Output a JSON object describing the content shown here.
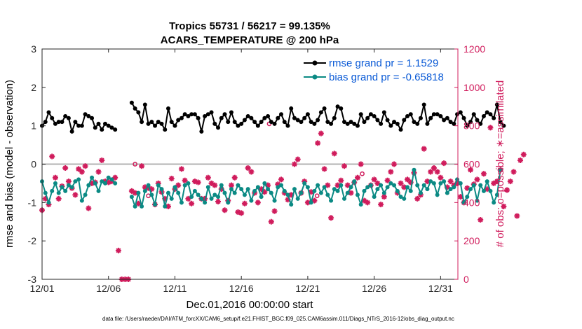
{
  "chart_data": {
    "type": "line",
    "title_line1": "Tropics 55731 / 56217 = 99.135%",
    "title_line2": "ACARS_TEMPERATURE @ 200 hPa",
    "xlabel": "Dec.01,2016 00:00:00 start",
    "ylabel_left": "rmse and bias (model - observation)",
    "ylabel_right": "# of obs: o=possible; ∗=assimilated",
    "footnote": "data file: /Users/raeder/DAI/ATM_forcXX/CAM6_setup/f.e21.FHIST_BGC.f09_025.CAM6assim.011/Diags_NTrS_2016-12/obs_diag_output.nc",
    "xlim": [
      1,
      32.3
    ],
    "ylim_left": [
      -3,
      3
    ],
    "ylim_right": [
      0,
      1200
    ],
    "x_ticks": [
      1,
      6,
      11,
      16,
      21,
      26,
      31
    ],
    "x_tick_labels": [
      "12/01",
      "12/06",
      "12/11",
      "12/16",
      "12/21",
      "12/26",
      "12/31"
    ],
    "y_ticks_left": [
      -3,
      -2,
      -1,
      0,
      1,
      2,
      3
    ],
    "y_ticks_right": [
      0,
      200,
      400,
      600,
      800,
      1000,
      1200
    ],
    "legend": {
      "position": "top-right",
      "entries": [
        "rmse grand pr = 1.1529",
        "bias grand pr = -0.65818"
      ]
    },
    "colors": {
      "rmse": "#000000",
      "bias": "#0b8a84",
      "obs": "#d01c5c",
      "zero_line": "#b3b3b3",
      "legend_text": "#0a5ad6"
    },
    "series": [
      {
        "name": "rmse",
        "x_start": 1.0,
        "x_step": 0.25,
        "values": [
          1.0,
          1.1,
          1.35,
          1.2,
          1.05,
          1.1,
          1.1,
          1.25,
          1.2,
          0.85,
          1.1,
          1.0,
          1.0,
          1.3,
          1.25,
          1.2,
          0.95,
          1.05,
          0.9,
          1.05,
          1.0,
          0.95,
          0.9,
          null,
          null,
          null,
          null,
          1.6,
          1.45,
          1.35,
          1.1,
          1.55,
          1.05,
          1.1,
          1.0,
          1.1,
          1.05,
          0.9,
          1.45,
          1.1,
          1.0,
          1.15,
          1.2,
          1.3,
          1.25,
          1.3,
          1.3,
          1.2,
          0.85,
          1.25,
          1.3,
          1.35,
          1.05,
          0.95,
          1.2,
          1.3,
          1.1,
          1.35,
          1.1,
          1.0,
          1.05,
          1.15,
          1.25,
          1.2,
          1.1,
          1.0,
          1.1,
          1.2,
          1.25,
          1.1,
          1.05,
          1.2,
          1.3,
          1.1,
          1.0,
          1.45,
          1.2,
          1.15,
          1.1,
          1.2,
          1.3,
          1.1,
          1.05,
          1.15,
          1.35,
          1.45,
          1.1,
          1.05,
          1.2,
          1.5,
          1.45,
          1.1,
          1.05,
          1.1,
          1.05,
          1.0,
          1.3,
          1.1,
          1.2,
          1.3,
          1.25,
          1.15,
          1.05,
          1.35,
          1.15,
          1.0,
          1.1,
          1.05,
          0.9,
          1.15,
          1.25,
          1.3,
          1.1,
          1.05,
          1.2,
          1.55,
          1.05,
          1.2,
          1.3,
          1.3,
          1.25,
          1.15,
          1.2,
          1.1,
          1.05,
          1.3,
          1.35,
          1.2,
          1.0,
          1.1,
          1.3,
          1.15,
          1.05,
          1.25,
          1.35,
          1.3,
          1.2,
          1.55,
          1.1,
          1.0
        ]
      },
      {
        "name": "bias",
        "x_start": 1.0,
        "x_step": 0.25,
        "values": [
          -0.45,
          -0.75,
          -1.0,
          -0.7,
          -0.5,
          -0.75,
          -0.6,
          -0.7,
          -0.55,
          -0.6,
          -0.45,
          -0.4,
          -0.95,
          -0.8,
          -0.55,
          -0.35,
          -0.5,
          -0.7,
          -0.45,
          -0.5,
          -0.35,
          -0.4,
          -0.5,
          null,
          null,
          null,
          null,
          -0.85,
          -1.1,
          -0.75,
          -1.1,
          -0.7,
          -0.55,
          -0.8,
          -1.05,
          -0.55,
          -0.65,
          -1.1,
          -0.75,
          -0.9,
          -0.6,
          -0.75,
          -1.0,
          -0.55,
          -0.5,
          -0.85,
          -0.7,
          -0.8,
          -0.9,
          -1.0,
          -0.6,
          -0.9,
          -0.8,
          -0.85,
          -0.55,
          -0.75,
          -1.0,
          -0.65,
          -0.75,
          -0.55,
          -0.65,
          -0.8,
          -0.65,
          -0.95,
          -0.7,
          -0.6,
          -0.85,
          -0.5,
          -0.65,
          -0.75,
          -0.95,
          -0.6,
          -0.55,
          -0.7,
          -0.8,
          -1.05,
          -0.65,
          -0.9,
          -0.75,
          -0.5,
          -0.6,
          -1.0,
          -0.7,
          -0.55,
          -0.75,
          -0.6,
          -0.8,
          -0.95,
          -0.65,
          -0.7,
          -0.55,
          -0.9,
          -0.75,
          -0.6,
          -0.45,
          -0.8,
          -1.05,
          -0.7,
          -0.6,
          -0.55,
          -0.85,
          -0.65,
          -0.55,
          -0.75,
          -0.6,
          -0.5,
          -0.55,
          -0.7,
          -0.85,
          -0.9,
          -0.6,
          -0.7,
          -0.15,
          -0.55,
          -0.75,
          -0.55,
          -0.65,
          -0.45,
          -0.5,
          -0.8,
          -0.5,
          -0.45,
          -0.75,
          -0.65,
          -0.6,
          -0.4,
          -0.5,
          -1.0,
          -0.85,
          -0.65,
          -0.55,
          -0.95,
          -0.55,
          -0.7,
          -0.45,
          -0.7,
          -1.0,
          -0.8,
          -0.15
        ]
      }
    ],
    "obs_count": {
      "name": "# of obs assimilated",
      "x_start": 1.0,
      "x_step": 0.25,
      "values": [
        360,
        420,
        390,
        640,
        530,
        420,
        485,
        580,
        510,
        475,
        440,
        575,
        560,
        590,
        370,
        500,
        505,
        560,
        620,
        510,
        505,
        510,
        530,
        150,
        0,
        0,
        0,
        460,
        450,
        395,
        590,
        480,
        475,
        470,
        390,
        500,
        455,
        420,
        380,
        525,
        470,
        490,
        575,
        515,
        420,
        395,
        510,
        505,
        420,
        420,
        530,
        500,
        490,
        405,
        470,
        360,
        410,
        490,
        530,
        350,
        345,
        395,
        580,
        560,
        450,
        400,
        470,
        455,
        490,
        300,
        355,
        495,
        520,
        450,
        415,
        440,
        600,
        625,
        450,
        510,
        400,
        455,
        410,
        710,
        760,
        575,
        490,
        320,
        655,
        490,
        515,
        590,
        490,
        450,
        505,
        530,
        600,
        410,
        400,
        490,
        520,
        500,
        390,
        430,
        515,
        560,
        600,
        450,
        500,
        480,
        520,
        505,
        555,
        420,
        440,
        680,
        510,
        560,
        580,
        560,
        530,
        605,
        480,
        510,
        490,
        500,
        430,
        400,
        475,
        570,
        495,
        520,
        310,
        550,
        470,
        790,
        500,
        510,
        570,
        380,
        465,
        510,
        560,
        330,
        620,
        650
      ]
    },
    "obs_possible": {
      "name": "# of obs possible (highlighted)",
      "points": [
        {
          "x": 8.0,
          "count": 600
        },
        {
          "x": 9.0,
          "count": 435
        },
        {
          "x": 18.1,
          "count": 810
        },
        {
          "x": 21.7,
          "count": 435
        },
        {
          "x": 25.1,
          "count": 550
        }
      ]
    }
  }
}
